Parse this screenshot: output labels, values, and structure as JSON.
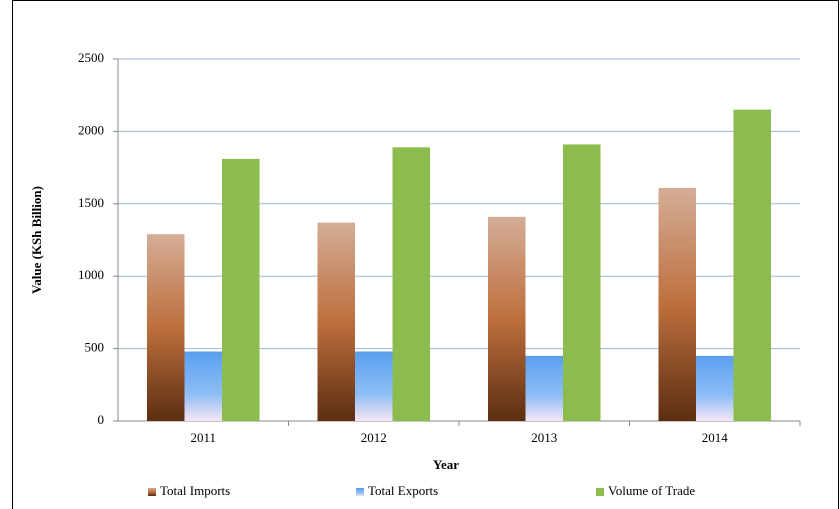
{
  "chart_data": {
    "type": "bar",
    "ylabel": "Value (KSh Billion)",
    "xlabel": "Year",
    "categories": [
      "2011",
      "2012",
      "2013",
      "2014"
    ],
    "series": [
      {
        "name": "Total Imports",
        "color": "#a85a2e",
        "values": [
          1290,
          1370,
          1410,
          1610
        ]
      },
      {
        "name": "Total Exports",
        "color": "#5b9ff0",
        "values": [
          480,
          480,
          450,
          450
        ]
      },
      {
        "name": "Volume of Trade",
        "color": "#8cbb4e",
        "values": [
          1810,
          1890,
          1910,
          2150
        ]
      }
    ],
    "ylim": [
      0,
      2500
    ],
    "yticks": [
      0,
      500,
      1000,
      1500,
      2000,
      2500
    ],
    "grid": true,
    "legend": "bottom"
  }
}
